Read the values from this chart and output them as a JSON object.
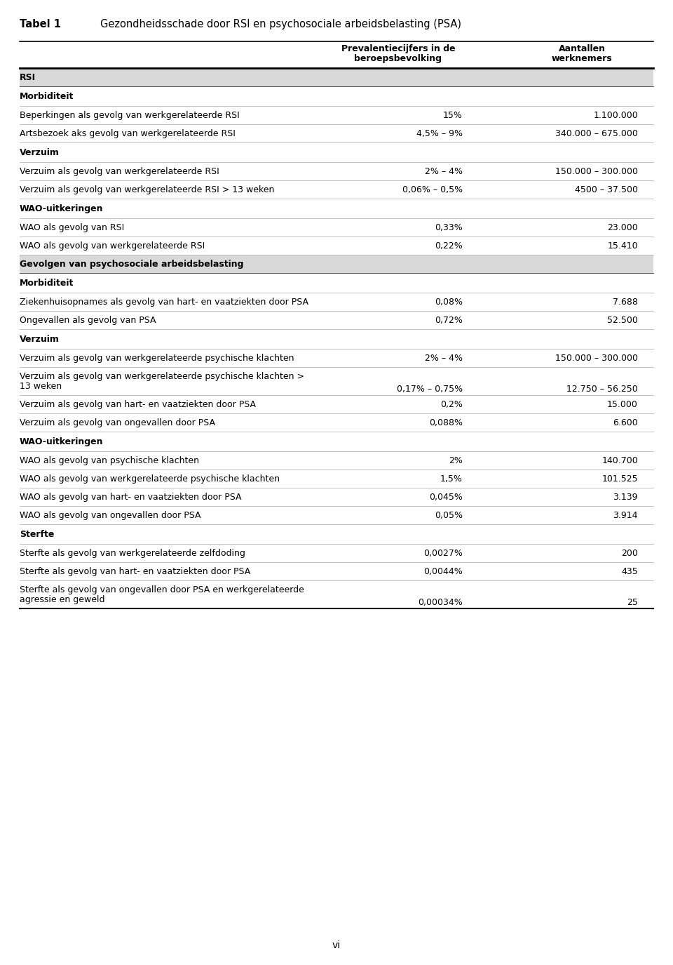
{
  "title": "Tabel 1",
  "title_text": "Gezondheidsschade door RSI en psychosociale arbeidsbelasting (PSA)",
  "col1_header_line1": "Prevalentiecijfers in de",
  "col1_header_line2": "beroepsbevolking",
  "col2_header_line1": "Aantallen",
  "col2_header_line2": "werknemers",
  "rows": [
    {
      "type": "section_header",
      "text": "RSI",
      "col1": "",
      "col2": ""
    },
    {
      "type": "subheader",
      "text": "Morbiditeit",
      "col1": "",
      "col2": ""
    },
    {
      "type": "data",
      "text": "Beperkingen als gevolg van werkgerelateerde RSI",
      "col1": "15%",
      "col2": "1.100.000"
    },
    {
      "type": "data",
      "text": "Artsbezoek aks gevolg van werkgerelateerde RSI",
      "col1": "4,5% – 9%",
      "col2": "340.000 – 675.000"
    },
    {
      "type": "subheader",
      "text": "Verzuim",
      "col1": "",
      "col2": ""
    },
    {
      "type": "data",
      "text": "Verzuim als gevolg van werkgerelateerde RSI",
      "col1": "2% – 4%",
      "col2": "150.000 – 300.000"
    },
    {
      "type": "data",
      "text": "Verzuim als gevolg van werkgerelateerde RSI > 13 weken",
      "col1": "0,06% – 0,5%",
      "col2": "4500 – 37.500"
    },
    {
      "type": "subheader",
      "text": "WAO-uitkeringen",
      "col1": "",
      "col2": ""
    },
    {
      "type": "data",
      "text": "WAO als gevolg van RSI",
      "col1": "0,33%",
      "col2": "23.000"
    },
    {
      "type": "data",
      "text": "WAO als gevolg van werkgerelateerde RSI",
      "col1": "0,22%",
      "col2": "15.410"
    },
    {
      "type": "section_header",
      "text": "Gevolgen van psychosociale arbeidsbelasting",
      "col1": "",
      "col2": ""
    },
    {
      "type": "subheader",
      "text": "Morbiditeit",
      "col1": "",
      "col2": ""
    },
    {
      "type": "data",
      "text": "Ziekenhuisopnames als gevolg van hart- en vaatziekten door PSA",
      "col1": "0,08%",
      "col2": "7.688"
    },
    {
      "type": "data",
      "text": "Ongevallen als gevolg van PSA",
      "col1": "0,72%",
      "col2": "52.500"
    },
    {
      "type": "subheader",
      "text": "Verzuim",
      "col1": "",
      "col2": ""
    },
    {
      "type": "data",
      "text": "Verzuim als gevolg van werkgerelateerde psychische klachten",
      "col1": "2% – 4%",
      "col2": "150.000 – 300.000"
    },
    {
      "type": "data_multiline",
      "text": "Verzuim als gevolg van werkgerelateerde psychische klachten >",
      "text2": "13 weken",
      "col1": "0,17% – 0,75%",
      "col2": "12.750 – 56.250"
    },
    {
      "type": "data",
      "text": "Verzuim als gevolg van hart- en vaatziekten door PSA",
      "col1": "0,2%",
      "col2": "15.000"
    },
    {
      "type": "data",
      "text": "Verzuim als gevolg van ongevallen door PSA",
      "col1": "0,088%",
      "col2": "6.600"
    },
    {
      "type": "subheader",
      "text": "WAO-uitkeringen",
      "col1": "",
      "col2": ""
    },
    {
      "type": "data",
      "text": "WAO als gevolg van psychische klachten",
      "col1": "2%",
      "col2": "140.700"
    },
    {
      "type": "data",
      "text": "WAO als gevolg van werkgerelateerde psychische klachten",
      "col1": "1,5%",
      "col2": "101.525"
    },
    {
      "type": "data",
      "text": "WAO als gevolg van hart- en vaatziekten door PSA",
      "col1": "0,045%",
      "col2": "3.139"
    },
    {
      "type": "data",
      "text": "WAO als gevolg van ongevallen door PSA",
      "col1": "0,05%",
      "col2": "3.914"
    },
    {
      "type": "subheader",
      "text": "Sterfte",
      "col1": "",
      "col2": ""
    },
    {
      "type": "data",
      "text": "Sterfte als gevolg van werkgerelateerde zelfdoding",
      "col1": "0,0027%",
      "col2": "200"
    },
    {
      "type": "data",
      "text": "Sterfte als gevolg van hart- en vaatziekten door PSA",
      "col1": "0,0044%",
      "col2": "435"
    },
    {
      "type": "data_multiline",
      "text": "Sterfte als gevolg van ongevallen door PSA en werkgerelateerde",
      "text2": "agressie en geweld",
      "col1": "0,00034%",
      "col2": "25"
    }
  ],
  "page_number": "vi",
  "bg_color": "#ffffff",
  "section_bg": "#d9d9d9",
  "text_color": "#000000",
  "font_size": 9.0,
  "title_font_size": 10.5
}
